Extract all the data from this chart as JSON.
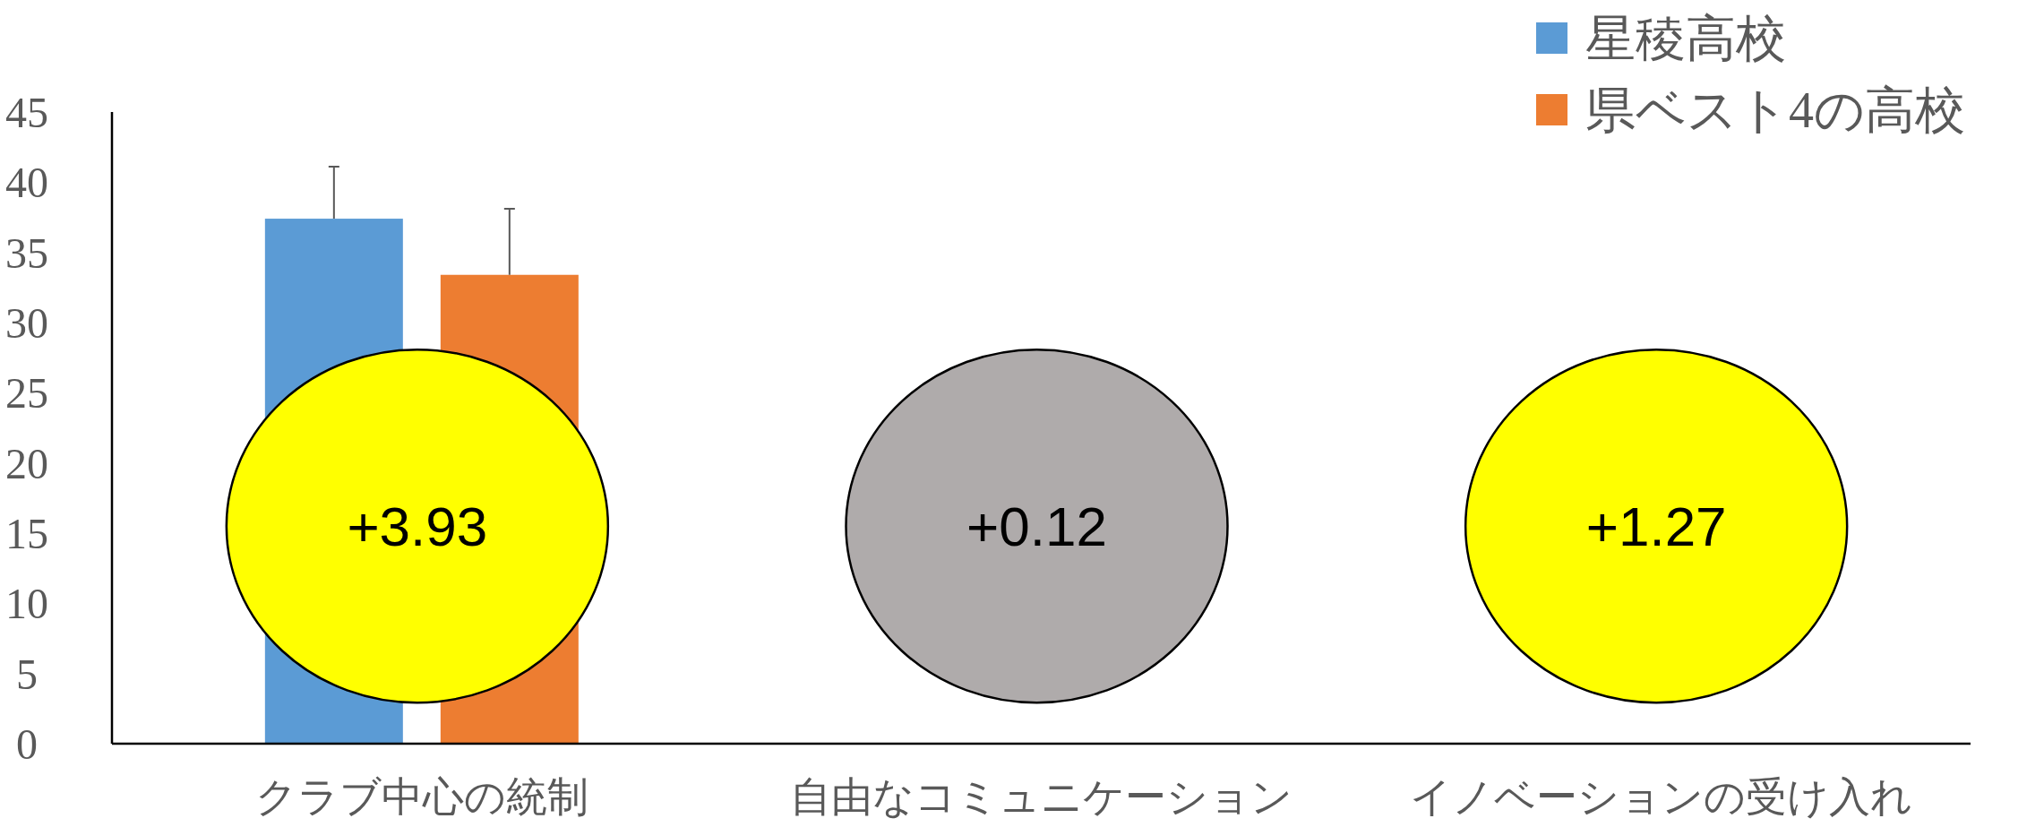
{
  "chart_data": {
    "type": "bar",
    "categories": [
      "クラブ中心の統制",
      "自由なコミュニケーション",
      "イノベーションの受け入れ"
    ],
    "series": [
      {
        "name": "星稜高校",
        "color": "#5b9bd5",
        "values": [
          37.4,
          null,
          null
        ],
        "errors": [
          [
            37.4,
            41.1
          ],
          null,
          null
        ]
      },
      {
        "name": "県ベスト4の高校",
        "color": "#ed7d31",
        "values": [
          33.4,
          null,
          null
        ],
        "errors": [
          [
            33.4,
            38.1
          ],
          null,
          null
        ]
      }
    ],
    "ylim": [
      0,
      45
    ],
    "yticks": [
      0,
      5,
      10,
      15,
      20,
      25,
      30,
      35,
      40,
      45
    ],
    "grid": false,
    "legend": "top right",
    "annotations": [
      "+3.93",
      "+0.12",
      "+1.27"
    ]
  }
}
